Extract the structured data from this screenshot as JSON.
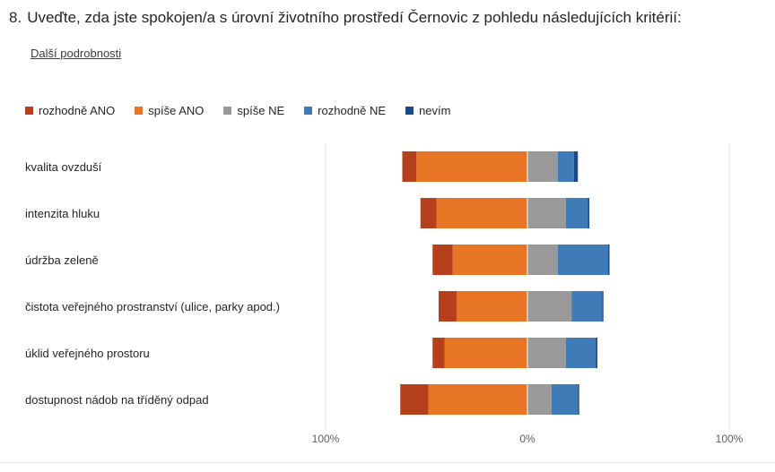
{
  "question": {
    "number": "8.",
    "text": "Uveďte, zda jste spokojen/a s úrovní životního prostředí Černovic z pohledu následujících kritérií:"
  },
  "details_link": "Další podrobnosti",
  "colors": {
    "rozhodne_ano": "#b63f1c",
    "spise_ano": "#e77524",
    "spise_ne": "#999999",
    "rozhodne_ne": "#3f7bb6",
    "nevim": "#1d4a8a"
  },
  "chart_data": {
    "type": "bar",
    "orientation": "horizontal",
    "stacking": "diverging",
    "categories": [
      "kvalita ovzduší",
      "intenzita hluku",
      "údržba zeleně",
      "čistota veřejného prostranství (ulice, parky apod.)",
      "úklid veřejného prostoru",
      "dostupnost nádob na tříděný odpad"
    ],
    "series": [
      {
        "name": "rozhodně ANO",
        "side": "negative",
        "values": [
          7,
          8,
          10,
          9,
          6,
          14
        ]
      },
      {
        "name": "spíše ANO",
        "side": "negative",
        "values": [
          55,
          45,
          37,
          35,
          41,
          49
        ]
      },
      {
        "name": "spíše NE",
        "side": "positive",
        "values": [
          15,
          19,
          15,
          22,
          19,
          12
        ]
      },
      {
        "name": "rozhodně NE",
        "side": "positive",
        "values": [
          8,
          11,
          25,
          15,
          15,
          13
        ]
      },
      {
        "name": "nevím",
        "side": "positive",
        "values": [
          2,
          0.5,
          0.5,
          0.5,
          0.5,
          0.5
        ]
      }
    ],
    "xlim": [
      -100,
      100
    ],
    "ticks": [
      {
        "value": -100,
        "label": "100%"
      },
      {
        "value": 0,
        "label": "0%"
      },
      {
        "value": 100,
        "label": "100%"
      }
    ],
    "grid": true,
    "legend_position": "top-left"
  }
}
